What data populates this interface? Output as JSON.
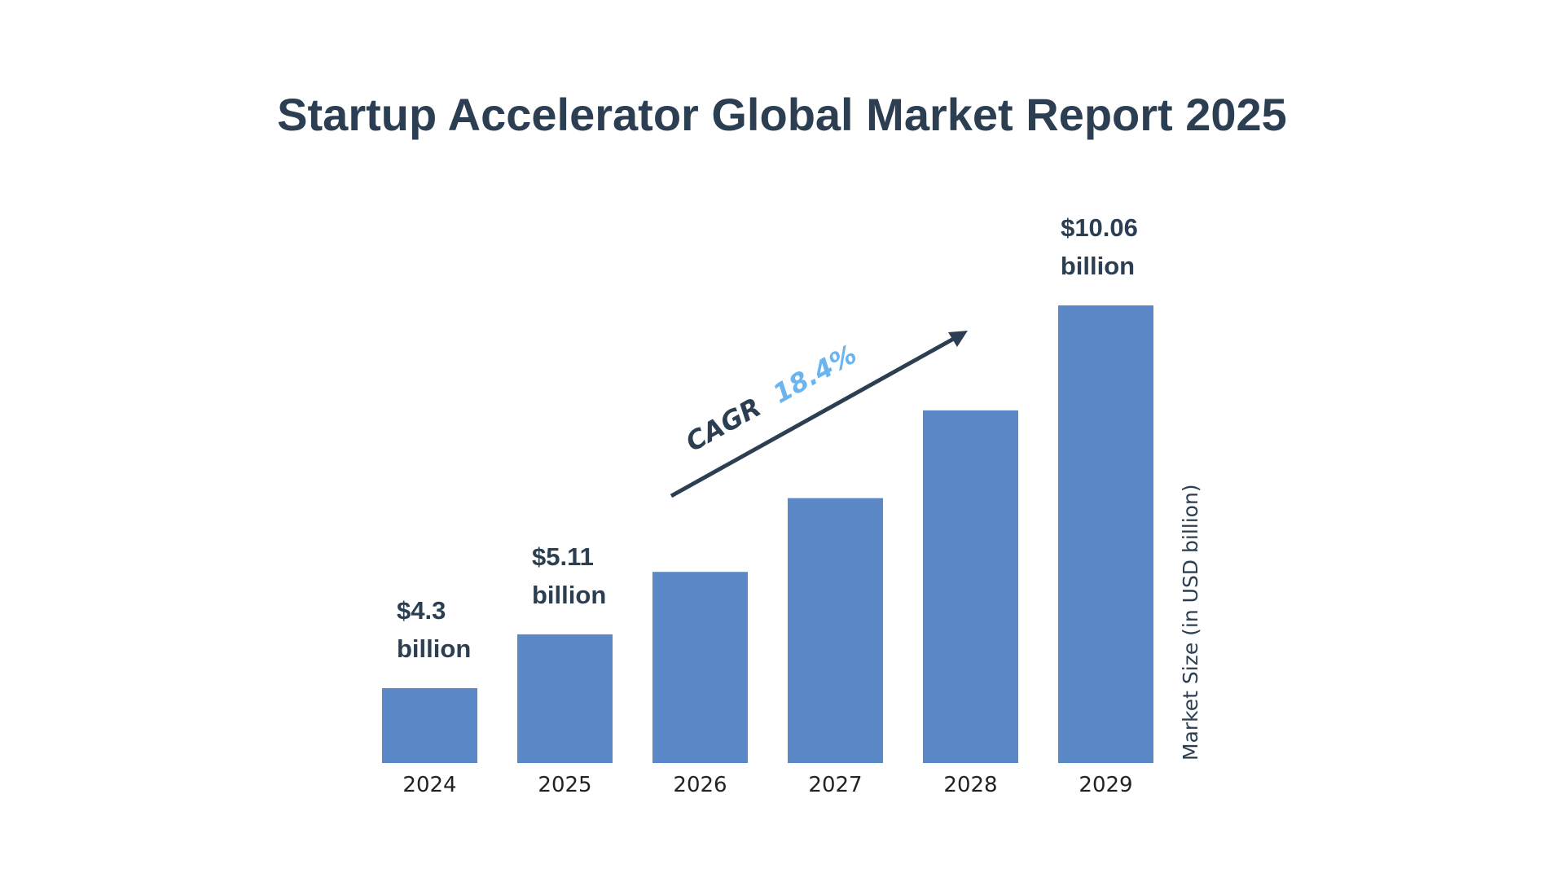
{
  "chart_data": {
    "type": "bar",
    "title": "Startup Accelerator Global Market Report 2025",
    "categories": [
      "2024",
      "2025",
      "2026",
      "2027",
      "2028",
      "2029"
    ],
    "values": [
      4.3,
      5.11,
      6.05,
      7.16,
      8.48,
      10.06
    ],
    "data_labels": [
      [
        "$4.3",
        "billion"
      ],
      [
        "$5.11",
        "billion"
      ],
      null,
      null,
      null,
      [
        "$10.06",
        "billion"
      ]
    ],
    "ylabel": "Market Size (in USD billion)",
    "xlabel": "",
    "annotation": {
      "label": "CAGR",
      "value": "18.4%"
    },
    "grid": false,
    "colors": {
      "bar": "#5b88c6",
      "text": "#2b3e52",
      "cagr_value": "#6ab4f0"
    }
  }
}
